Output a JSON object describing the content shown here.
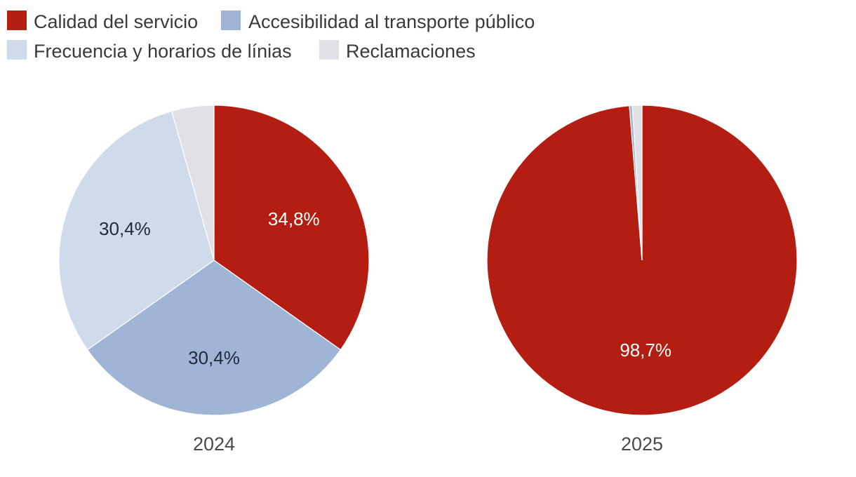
{
  "chart_data": {
    "type": "pie",
    "series_names": [
      "Calidad del servicio",
      "Accesibilidad al transporte público",
      "Frecuencia y horarios de línias",
      "Reclamaciones"
    ],
    "colors": [
      "#b41e12",
      "#a0b4d6",
      "#cfdbeb",
      "#e0e0e6"
    ],
    "label_colors": [
      "#ffffff",
      "#1e2a3a",
      "#1e2a3a",
      "#1e2a3a"
    ],
    "legend_position": "top-left",
    "pies": [
      {
        "category": "2024",
        "values": [
          34.8,
          30.4,
          30.4,
          4.4
        ],
        "labels": [
          "34,8%",
          "30,4%",
          "30,4%",
          ""
        ]
      },
      {
        "category": "2025",
        "values": [
          98.7,
          0.3,
          0.0,
          1.0
        ],
        "labels": [
          "98,7%",
          "",
          "",
          ""
        ]
      }
    ]
  }
}
